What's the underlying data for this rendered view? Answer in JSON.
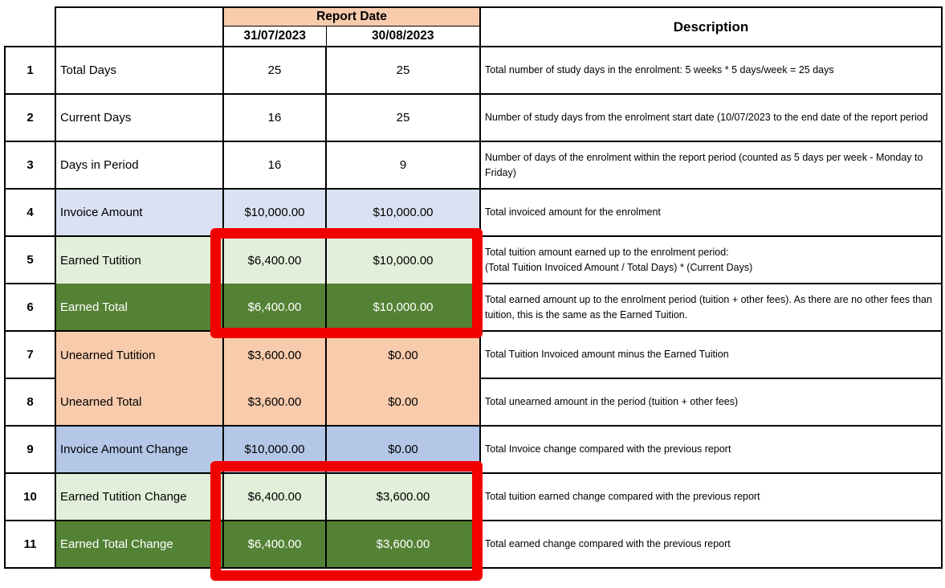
{
  "colors": {
    "header_peach": "#F8CBAD",
    "row_lavender": "#D9E1F2",
    "row_blue": "#B4C7E7",
    "row_light_green": "#E2EFDA",
    "row_dark_green": "#548235",
    "highlight_red": "#F20000",
    "grid_border": "#000000"
  },
  "header": {
    "report_date_label": "Report Date",
    "date_col_1": "31/07/2023",
    "date_col_2": "30/08/2023",
    "description_label": "Description"
  },
  "rows": [
    {
      "num": "1",
      "label": "Total Days",
      "v1": "25",
      "v2": "25",
      "desc": "Total number of study days in the enrolment: 5 weeks * 5 days/week = 25 days"
    },
    {
      "num": "2",
      "label": "Current Days",
      "v1": "16",
      "v2": "25",
      "desc": "Number of study days from the enrolment start date (10/07/2023 to the end date of the report period"
    },
    {
      "num": "3",
      "label": "Days in Period",
      "v1": "16",
      "v2": "9",
      "desc": "Number of days of the enrolment within the report period (counted as 5 days per week - Monday to Friday)"
    },
    {
      "num": "4",
      "label": "Invoice Amount",
      "v1": "$10,000.00",
      "v2": "$10,000.00",
      "desc": "Total invoiced amount for the enrolment"
    },
    {
      "num": "5",
      "label": "Earned Tutition",
      "v1": "$6,400.00",
      "v2": "$10,000.00",
      "desc": "Total tuition amount earned up to the enrolment period:\n(Total Tuition Invoiced Amount / Total Days) * (Current Days)"
    },
    {
      "num": "6",
      "label": "Earned Total",
      "v1": "$6,400.00",
      "v2": "$10,000.00",
      "desc": "Total earned amount up to the enrolment period (tuition + other fees). As there are no other fees than tuition, this is the same as the Earned Tuition."
    },
    {
      "num": "7",
      "label": "Unearned Tutition",
      "v1": "$3,600.00",
      "v2": "$0.00",
      "desc": "Total Tuition Invoiced amount minus the Earned Tuition"
    },
    {
      "num": "8",
      "label": "Unearned Total",
      "v1": "$3,600.00",
      "v2": "$0.00",
      "desc": "Total unearned amount in the period (tuition + other fees)"
    },
    {
      "num": "9",
      "label": "Invoice Amount Change",
      "v1": "$10,000.00",
      "v2": "$0.00",
      "desc": "Total Invoice change compared with the previous report"
    },
    {
      "num": "10",
      "label": "Earned Tutition Change",
      "v1": "$6,400.00",
      "v2": "$3,600.00",
      "desc": "Total tuition earned change compared with the previous report"
    },
    {
      "num": "11",
      "label": "Earned Total Change",
      "v1": "$6,400.00",
      "v2": "$3,600.00",
      "desc": "Total earned change compared with the previous report"
    }
  ],
  "annotations": {
    "highlight_boxes": [
      {
        "name": "earned-rows-highlight",
        "covers_rows": "5-6",
        "covers_columns": "31/07/2023, 30/08/2023",
        "color": "#F20000"
      },
      {
        "name": "change-rows-highlight",
        "covers_rows": "10-11",
        "covers_columns": "31/07/2023, 30/08/2023",
        "color": "#F20000"
      }
    ]
  }
}
